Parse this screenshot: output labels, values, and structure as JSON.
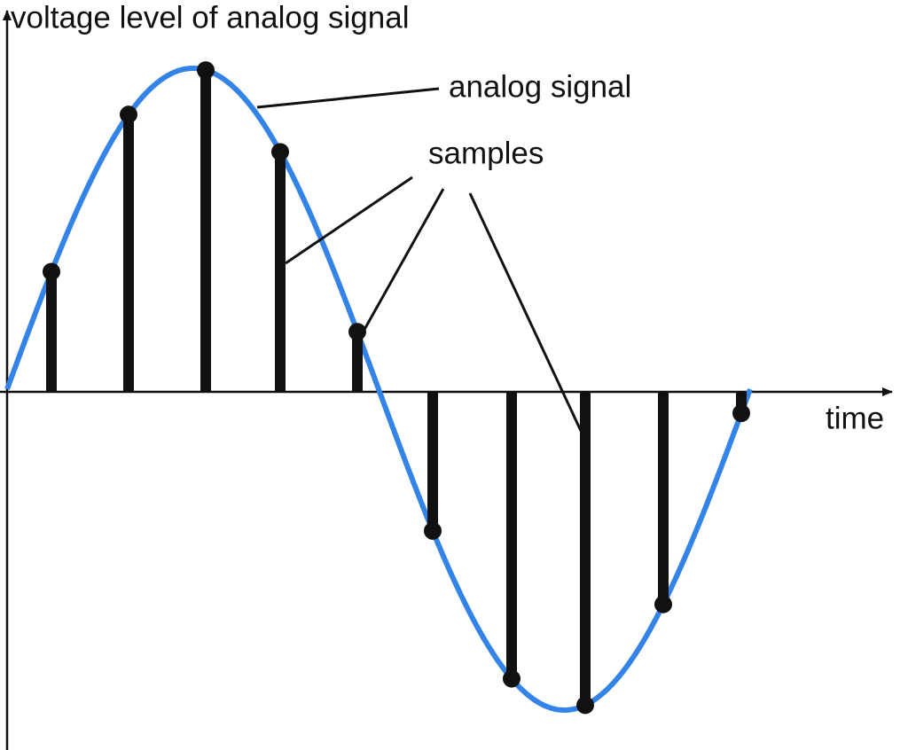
{
  "y_axis_label": "voltage level of analog signal",
  "x_axis_label": "time",
  "callouts": {
    "analog_signal": "analog signal",
    "samples": "samples"
  }
}
